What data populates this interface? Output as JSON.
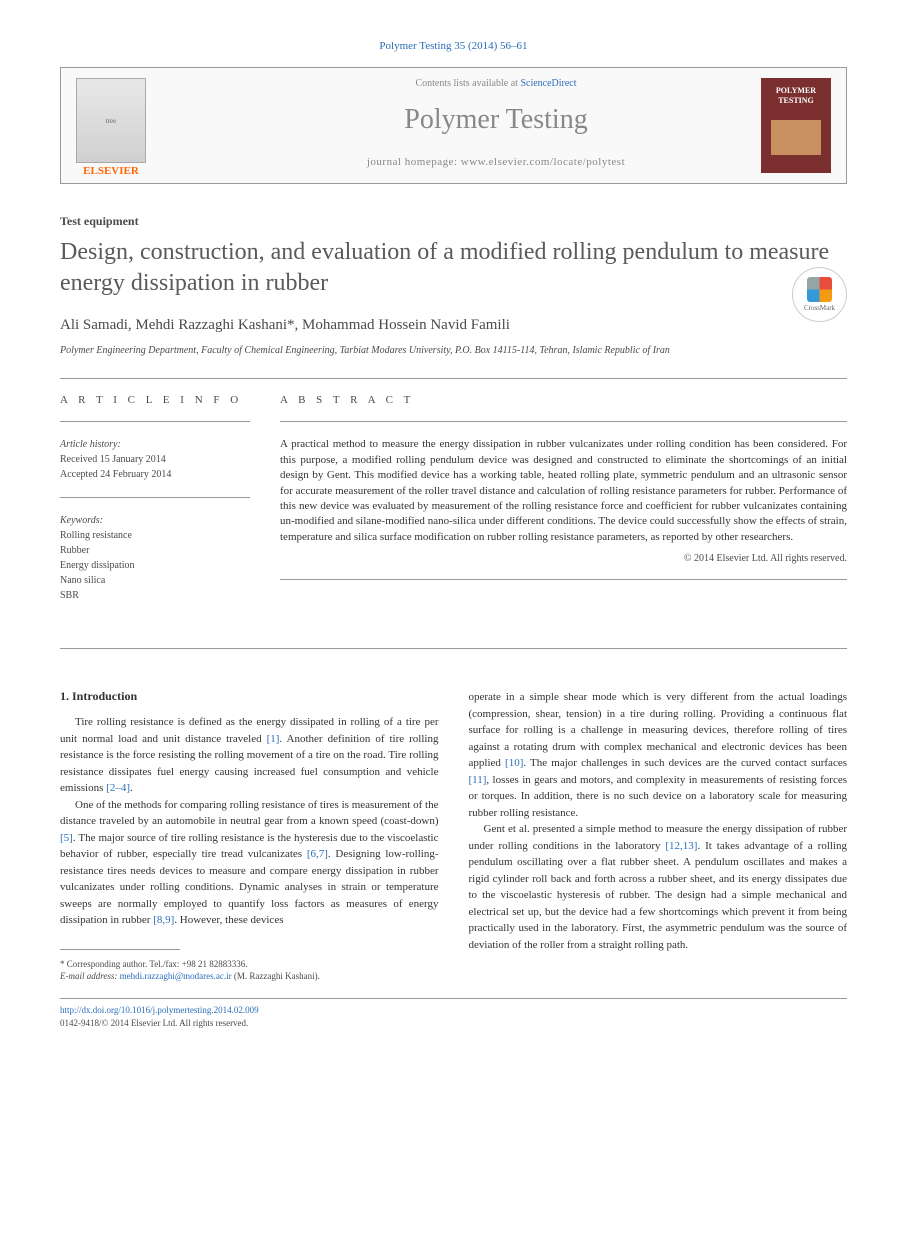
{
  "citation": "Polymer Testing 35 (2014) 56–61",
  "header": {
    "contents_prefix": "Contents lists available at ",
    "contents_link": "ScienceDirect",
    "journal": "Polymer Testing",
    "homepage_prefix": "journal homepage: ",
    "homepage_url": "www.elsevier.com/locate/polytest",
    "publisher": "ELSEVIER",
    "cover_title": "POLYMER TESTING"
  },
  "article": {
    "type": "Test equipment",
    "title": "Design, construction, and evaluation of a modified rolling pendulum to measure energy dissipation in rubber",
    "authors": "Ali Samadi, Mehdi Razzaghi Kashani*, Mohammad Hossein Navid Famili",
    "affiliation": "Polymer Engineering Department, Faculty of Chemical Engineering, Tarbiat Modares University, P.O. Box 14115-114, Tehran, Islamic Republic of Iran",
    "crossmark": "CrossMark"
  },
  "info": {
    "heading": "A R T I C L E  I N F O",
    "history_label": "Article history:",
    "received": "Received 15 January 2014",
    "accepted": "Accepted 24 February 2014",
    "keywords_label": "Keywords:",
    "keywords": [
      "Rolling resistance",
      "Rubber",
      "Energy dissipation",
      "Nano silica",
      "SBR"
    ]
  },
  "abstract": {
    "heading": "A B S T R A C T",
    "text": "A practical method to measure the energy dissipation in rubber vulcanizates under rolling condition has been considered. For this purpose, a modified rolling pendulum device was designed and constructed to eliminate the shortcomings of an initial design by Gent. This modified device has a working table, heated rolling plate, symmetric pendulum and an ultrasonic sensor for accurate measurement of the roller travel distance and calculation of rolling resistance parameters for rubber. Performance of this new device was evaluated by measurement of the rolling resistance force and coefficient for rubber vulcanizates containing un-modified and silane-modified nano-silica under different conditions. The device could successfully show the effects of strain, temperature and silica surface modification on rubber rolling resistance parameters, as reported by other researchers.",
    "copyright": "© 2014 Elsevier Ltd. All rights reserved."
  },
  "body": {
    "intro_heading": "1. Introduction",
    "para1_a": "Tire rolling resistance is defined as the energy dissipated in rolling of a tire per unit normal load and unit distance traveled ",
    "para1_ref1": "[1]",
    "para1_b": ". Another definition of tire rolling resistance is the force resisting the rolling movement of a tire on the road. Tire rolling resistance dissipates fuel energy causing increased fuel consumption and vehicle emissions ",
    "para1_ref2": "[2–4]",
    "para1_c": ".",
    "para2_a": "One of the methods for comparing rolling resistance of tires is measurement of the distance traveled by an automobile in neutral gear from a known speed (coast-down) ",
    "para2_ref1": "[5]",
    "para2_b": ". The major source of tire rolling resistance is the hysteresis due to the viscoelastic behavior of rubber, especially tire tread vulcanizates ",
    "para2_ref2": "[6,7]",
    "para2_c": ". Designing low-rolling-resistance tires needs devices to measure and compare energy dissipation in rubber vulcanizates under rolling conditions. Dynamic analyses in strain or temperature sweeps are normally employed to quantify loss factors as measures of energy dissipation in rubber ",
    "para2_ref3": "[8,9]",
    "para2_d": ". However, these devices",
    "para3_a": "operate in a simple shear mode which is very different from the actual loadings (compression, shear, tension) in a tire during rolling. Providing a continuous flat surface for rolling is a challenge in measuring devices, therefore rolling of tires against a rotating drum with complex mechanical and electronic devices has been applied ",
    "para3_ref1": "[10]",
    "para3_b": ". The major challenges in such devices are the curved contact surfaces ",
    "para3_ref2": "[11]",
    "para3_c": ", losses in gears and motors, and complexity in measurements of resisting forces or torques. In addition, there is no such device on a laboratory scale for measuring rubber rolling resistance.",
    "para4_a": "Gent et al. presented a simple method to measure the energy dissipation of rubber under rolling conditions in the laboratory ",
    "para4_ref1": "[12,13]",
    "para4_b": ". It takes advantage of a rolling pendulum oscillating over a flat rubber sheet. A pendulum oscillates and makes a rigid cylinder roll back and forth across a rubber sheet, and its energy dissipates due to the viscoelastic hysteresis of rubber. The design had a simple mechanical and electrical set up, but the device had a few shortcomings which prevent it from being practically used in the laboratory. First, the asymmetric pendulum was the source of deviation of the roller from a straight rolling path."
  },
  "footnote": {
    "corr": "* Corresponding author. Tel./fax: +98 21 82883336.",
    "email_label": "E-mail address: ",
    "email": "mehdi.razzaghi@modares.ac.ir",
    "email_suffix": " (M. Razzaghi Kashani)."
  },
  "footer": {
    "doi": "http://dx.doi.org/10.1016/j.polymertesting.2014.02.009",
    "issn": "0142-9418/© 2014 Elsevier Ltd. All rights reserved."
  },
  "colors": {
    "link": "#2a6ebb",
    "publisher": "#ff6600",
    "heading_gray": "#888888",
    "cover_bg": "#7a2e2e"
  }
}
